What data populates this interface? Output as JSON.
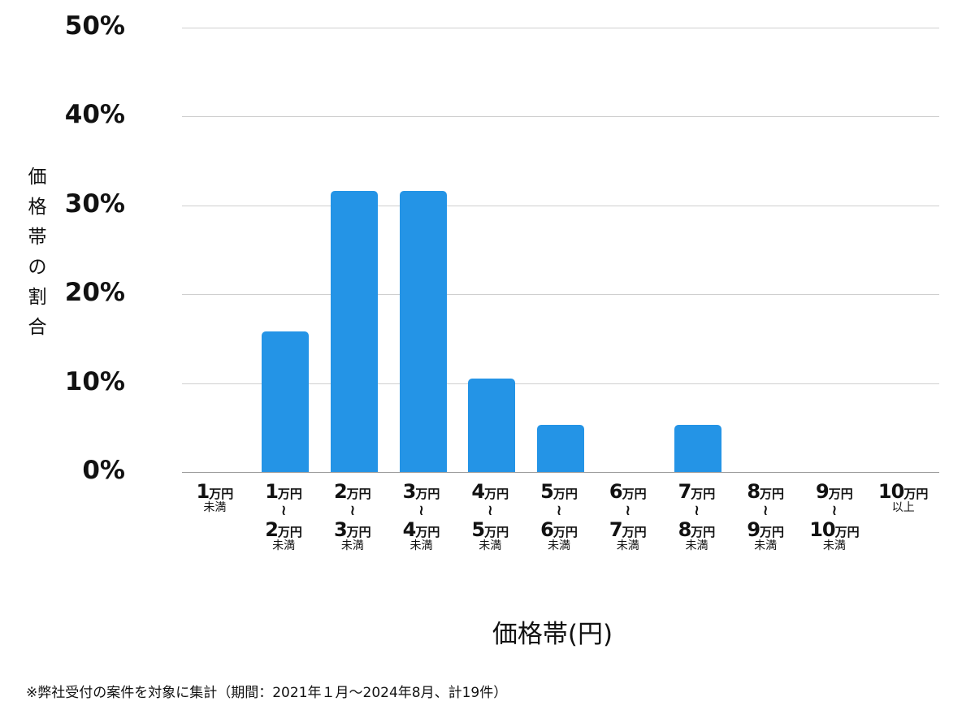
{
  "chart_data": {
    "type": "bar",
    "title": "",
    "xlabel": "価格帯(円)",
    "ylabel": "価格帯の割合",
    "ylim": [
      0,
      50
    ],
    "yticks": [
      "0%",
      "10%",
      "20%",
      "30%",
      "40%",
      "50%"
    ],
    "grid": true,
    "legend": null,
    "bar_color": "#2494e6",
    "categories": [
      "1万円未満",
      "1万円〜2万円未満",
      "2万円〜3万円未満",
      "3万円〜4万円未満",
      "4万円〜5万円未満",
      "5万円〜6万円未満",
      "6万円〜7万円未満",
      "7万円〜8万円未満",
      "8万円〜9万円未満",
      "9万円〜10万円未満",
      "10万円以上"
    ],
    "values": [
      0,
      15.8,
      31.6,
      31.6,
      10.5,
      5.3,
      0,
      5.3,
      0,
      0,
      0
    ],
    "unit": "%"
  },
  "axis": {
    "yticks": [
      {
        "label": "50%",
        "value": 50
      },
      {
        "label": "40%",
        "value": 40
      },
      {
        "label": "30%",
        "value": 30
      },
      {
        "label": "20%",
        "value": 20
      },
      {
        "label": "10%",
        "value": 10
      },
      {
        "label": "0%",
        "value": 0
      }
    ],
    "ylabel_chars": [
      "価",
      "格",
      "帯",
      "の",
      "割",
      "合"
    ],
    "xlabel": "価格帯(円)"
  },
  "xcats": [
    {
      "from": "1",
      "to": null,
      "sub": "未満"
    },
    {
      "from": "1",
      "to": "2",
      "sub": "未満"
    },
    {
      "from": "2",
      "to": "3",
      "sub": "未満"
    },
    {
      "from": "3",
      "to": "4",
      "sub": "未満"
    },
    {
      "from": "4",
      "to": "5",
      "sub": "未満"
    },
    {
      "from": "5",
      "to": "6",
      "sub": "未満"
    },
    {
      "from": "6",
      "to": "7",
      "sub": "未満"
    },
    {
      "from": "7",
      "to": "8",
      "sub": "未満"
    },
    {
      "from": "8",
      "to": "9",
      "sub": "未満"
    },
    {
      "from": "9",
      "to": "10",
      "sub": "未満"
    },
    {
      "from": "10",
      "to": null,
      "sub": "以上"
    }
  ],
  "unit_label": "万円",
  "range_symbol": "≀",
  "footnote": "※弊社受付の案件を対象に集計（期間：2021年１月〜2024年8月、計19件）"
}
